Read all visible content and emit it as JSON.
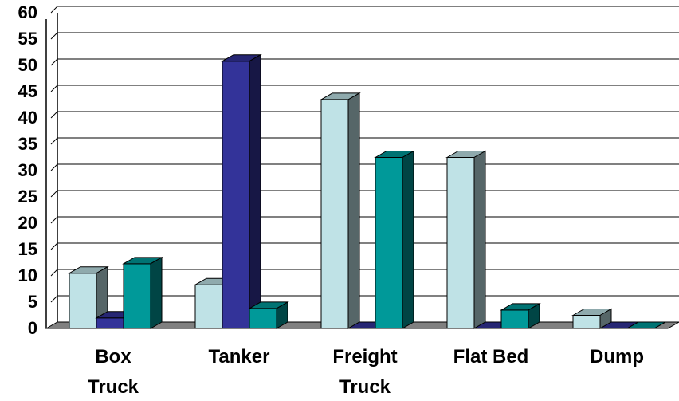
{
  "chart_data": {
    "type": "bar",
    "title": "",
    "xlabel": "",
    "ylabel": "",
    "ylim": [
      0,
      60
    ],
    "yticks": [
      0,
      5,
      10,
      15,
      20,
      25,
      30,
      35,
      40,
      45,
      50,
      55,
      60
    ],
    "categories": [
      [
        "Box",
        "Truck"
      ],
      [
        "Tanker"
      ],
      [
        "Freight",
        "Truck"
      ],
      [
        "Flat Bed"
      ],
      [
        "Dump"
      ]
    ],
    "series": [
      {
        "values": [
          10.5,
          8.3,
          43.5,
          32.5,
          2.5
        ],
        "color": "#bfe2e6"
      },
      {
        "values": [
          2.0,
          50.8,
          0,
          0,
          0
        ],
        "color": "#333399"
      },
      {
        "values": [
          12.3,
          3.8,
          32.5,
          3.5,
          0
        ],
        "color": "#009999"
      }
    ],
    "style": "3d-clustered-column",
    "grid": true,
    "legend": "none"
  }
}
